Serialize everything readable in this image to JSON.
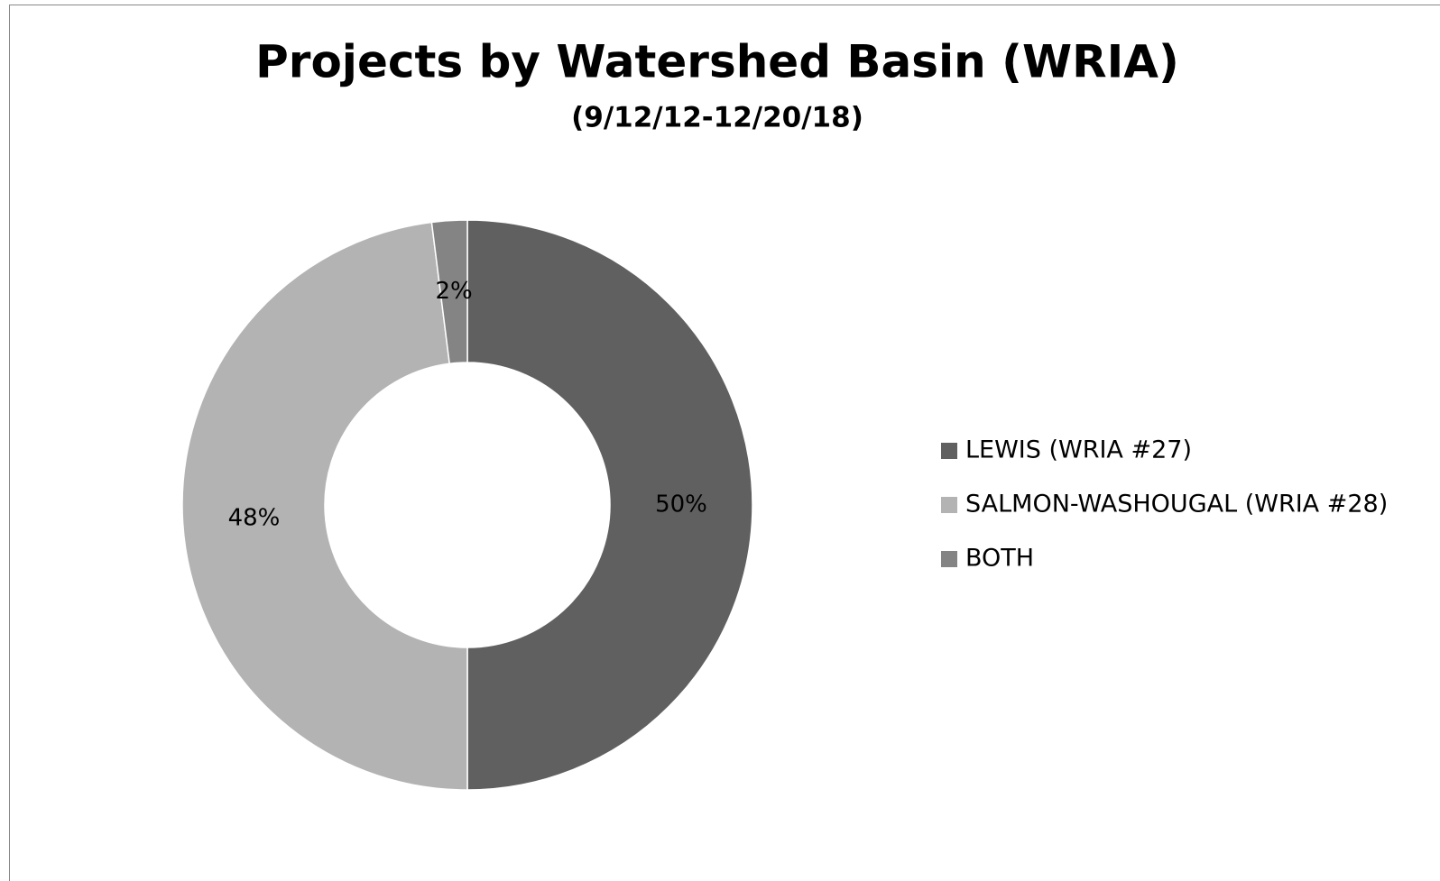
{
  "chart_data": {
    "type": "pie",
    "title": "Projects by Watershed Basin (WRIA)",
    "subtitle": "(9/12/12-12/20/18)",
    "categories": [
      "LEWIS (WRIA #27)",
      "SALMON-WASHOUGAL (WRIA #28)",
      "BOTH"
    ],
    "values": [
      50,
      48,
      2
    ],
    "value_labels": [
      "50%",
      "48%",
      "2%"
    ],
    "colors": [
      "#606060",
      "#b3b3b3",
      "#848484"
    ],
    "donut": true,
    "legend": "right"
  }
}
